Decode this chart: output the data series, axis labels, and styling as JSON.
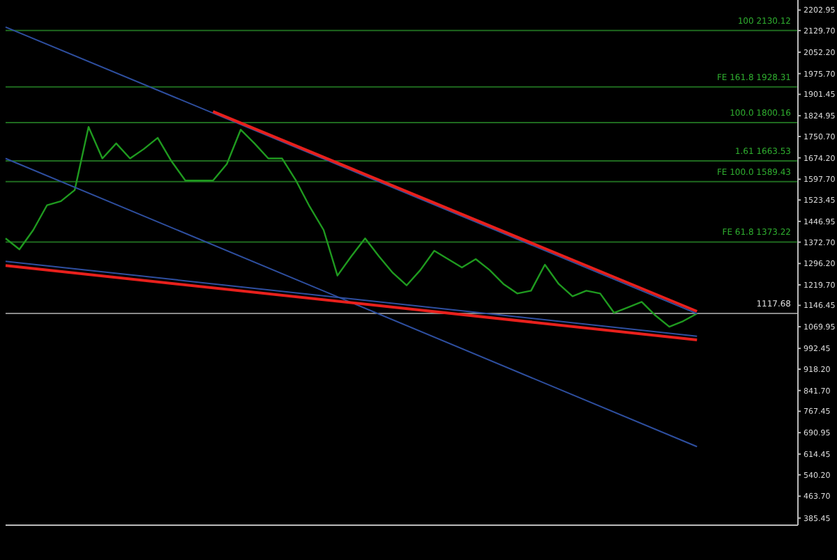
{
  "chart_data": {
    "type": "line",
    "categories": [
      null,
      null,
      null,
      null,
      null,
      null,
      null,
      null,
      null,
      null,
      null,
      null,
      null,
      null,
      null,
      null,
      null,
      null,
      null,
      null,
      null,
      null,
      null,
      null,
      null,
      null,
      null,
      null,
      null,
      null,
      null,
      null,
      null,
      null,
      null,
      null,
      null,
      null,
      null,
      null,
      null,
      null,
      null,
      null,
      null,
      null,
      null,
      null,
      null,
      null,
      null
    ],
    "series": [
      {
        "color": "#1f9a1f",
        "values": [
          1386,
          1347,
          1416,
          1505,
          1519,
          1559,
          1785,
          1672,
          1726,
          1672,
          1706,
          1746,
          1662,
          1593,
          1593,
          1593,
          1652,
          1775,
          1726,
          1672,
          1672,
          1593,
          1499,
          1416,
          1253,
          1322,
          1386,
          1322,
          1263,
          1218,
          1273,
          1342,
          1312,
          1282,
          1312,
          1273,
          1223,
          1189,
          1199,
          1292,
          1223,
          1179,
          1199,
          1189,
          1120,
          1139,
          1159,
          1110,
          1070,
          1090,
          1117
        ]
      },
      {
        "color": "#2e4fa0",
        "values": [
          2142,
          null,
          null,
          null,
          null,
          null,
          null,
          null,
          null,
          null,
          null,
          null,
          null,
          null,
          null,
          null,
          null,
          null,
          null,
          null,
          null,
          null,
          null,
          null,
          null,
          null,
          null,
          null,
          null,
          null,
          null,
          null,
          null,
          null,
          null,
          null,
          null,
          null,
          null,
          null,
          null,
          null,
          null,
          null,
          null,
          null,
          null,
          null,
          null,
          null,
          1117
        ]
      },
      {
        "color": "#2e4fa0",
        "values": [
          1672,
          null,
          null,
          null,
          null,
          null,
          null,
          null,
          null,
          null,
          null,
          null,
          null,
          null,
          null,
          null,
          null,
          null,
          null,
          null,
          null,
          null,
          null,
          null,
          null,
          null,
          null,
          null,
          null,
          null,
          null,
          null,
          null,
          null,
          null,
          null,
          null,
          null,
          null,
          null,
          null,
          null,
          null,
          null,
          null,
          null,
          null,
          null,
          null,
          null,
          641
        ]
      },
      {
        "color": "#2e4fa0",
        "values": [
          1304,
          null,
          null,
          null,
          null,
          null,
          null,
          null,
          null,
          null,
          null,
          null,
          null,
          null,
          null,
          null,
          null,
          null,
          null,
          null,
          null,
          null,
          null,
          null,
          null,
          null,
          null,
          null,
          null,
          null,
          null,
          null,
          null,
          null,
          null,
          null,
          null,
          null,
          null,
          null,
          null,
          null,
          null,
          null,
          null,
          null,
          null,
          null,
          null,
          null,
          1036
        ]
      },
      {
        "color": "#e8201c",
        "values": [
          null,
          null,
          null,
          null,
          null,
          null,
          null,
          null,
          null,
          null,
          null,
          null,
          null,
          null,
          null,
          1840,
          null,
          null,
          null,
          null,
          null,
          null,
          null,
          null,
          null,
          null,
          null,
          null,
          null,
          null,
          null,
          null,
          null,
          null,
          null,
          null,
          null,
          null,
          null,
          null,
          null,
          null,
          null,
          null,
          null,
          null,
          null,
          null,
          null,
          null,
          1125
        ]
      },
      {
        "color": "#e8201c",
        "values": [
          1289,
          null,
          null,
          null,
          null,
          null,
          null,
          null,
          null,
          null,
          null,
          null,
          null,
          null,
          null,
          null,
          null,
          null,
          null,
          null,
          null,
          null,
          null,
          null,
          null,
          null,
          null,
          null,
          null,
          null,
          null,
          null,
          null,
          null,
          null,
          null,
          null,
          null,
          null,
          null,
          null,
          null,
          null,
          null,
          null,
          null,
          null,
          null,
          null,
          null,
          1023
        ]
      }
    ],
    "ylim": [
      360,
      2239
    ],
    "yticks": [
      2202.95,
      {
        "value": 2129.7,
        "label": "2129.70"
      },
      {
        "value": 2052.2,
        "label": "2052.20"
      },
      {
        "value": 1975.7,
        "label": "1975.70"
      },
      1901.45,
      1824.95,
      {
        "value": 1750.7,
        "label": "1750.70"
      },
      {
        "value": 1674.2,
        "label": "1674.20"
      },
      {
        "value": 1597.7,
        "label": "1597.70"
      },
      1523.45,
      1446.95,
      {
        "value": 1372.7,
        "label": "1372.70"
      },
      {
        "value": 1296.2,
        "label": "1296.20"
      },
      {
        "value": 1219.7,
        "label": "1219.70"
      },
      1146.45,
      1069.95,
      992.45,
      {
        "value": 918.2,
        "label": "918.20"
      },
      {
        "value": 841.7,
        "label": "841.70"
      },
      767.45,
      690.95,
      614.45,
      {
        "value": 540.2,
        "label": "540.20"
      },
      {
        "value": 463.7,
        "label": "463.70"
      },
      385.45
    ],
    "ref_lines": [
      {
        "axis": "y",
        "value": 2130.12,
        "label": "100 2130.12",
        "color": "#1f6a1f"
      },
      {
        "axis": "y",
        "value": 1928.31,
        "label": "FE 161.8 1928.31",
        "color": "#1f6a1f"
      },
      {
        "axis": "y",
        "value": 1800.16,
        "label": "100.0 1800.16",
        "color": "#1f6a1f"
      },
      {
        "axis": "y",
        "value": 1663.53,
        "label": "1.61 1663.53",
        "color": "#1f6a1f"
      },
      {
        "axis": "y",
        "value": 1589.43,
        "label": "FE 100.0 1589.43",
        "color": "#1f6a1f"
      },
      {
        "axis": "y",
        "value": 1373.22,
        "label": "FE 61.8 1373.22",
        "color": "#1f6a1f"
      },
      {
        "axis": "y",
        "value": 1117.68,
        "label": "1117.68",
        "color": "#8a8a8a"
      }
    ],
    "tick_labels": "y",
    "marker": "none",
    "line_style": "solid"
  }
}
